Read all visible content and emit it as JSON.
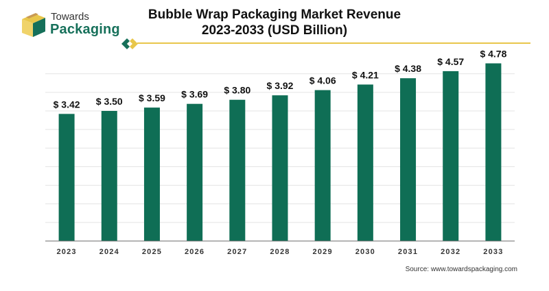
{
  "brand": {
    "name_top": "Towards",
    "name_bottom": "Packaging",
    "logo_icon": "box-logo-icon",
    "colors": {
      "green": "#16705a",
      "gold": "#e8c64a",
      "tan": "#c99a54"
    }
  },
  "title_line1": "Bubble Wrap Packaging Market Revenue",
  "title_line2": "2023-2033 (USD Billion)",
  "source": "Source: www.towardspackaging.com",
  "chart_data": {
    "type": "bar",
    "categories": [
      "2023",
      "2024",
      "2025",
      "2026",
      "2027",
      "2028",
      "2029",
      "2030",
      "2031",
      "2032",
      "2033"
    ],
    "values": [
      3.42,
      3.5,
      3.59,
      3.69,
      3.8,
      3.92,
      4.06,
      4.21,
      4.38,
      4.57,
      4.78
    ],
    "value_labels": [
      "$ 3.42",
      "$ 3.50",
      "$ 3.59",
      "$ 3.69",
      "$ 3.80",
      "$ 3.92",
      "$ 4.06",
      "$ 4.21",
      "$ 4.38",
      "$ 4.57",
      "$ 4.78"
    ],
    "title": "Bubble Wrap Packaging Market Revenue 2023-2033 (USD Billion)",
    "xlabel": "",
    "ylabel": "",
    "bar_color": "#0f6e55",
    "grid": true,
    "legend": "none"
  }
}
